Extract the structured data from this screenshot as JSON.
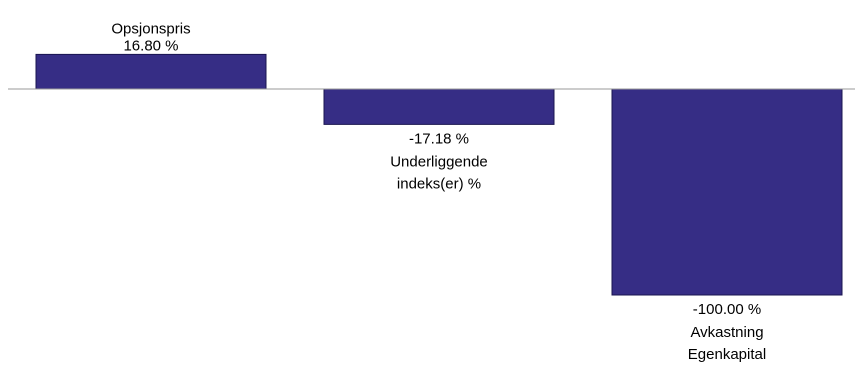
{
  "chart_data": {
    "type": "bar",
    "title": "",
    "xlabel": "",
    "ylabel": "",
    "categories": [
      "Opsjonspris",
      "Underliggende indeks(er) %",
      "Avkastning Egenkapital"
    ],
    "category_lines": [
      [
        "Opsjonspris"
      ],
      [
        "Underliggende",
        "indeks(er) %"
      ],
      [
        "Avkastning",
        "Egenkapital"
      ]
    ],
    "values": [
      16.8,
      -17.18,
      -100.0
    ],
    "value_labels": [
      "16.80 %",
      "-17.18 %",
      "-100.00 %"
    ],
    "ylim": [
      -100,
      16.8
    ],
    "grid": false,
    "legend": "none",
    "colors": {
      "bar": "#362D85",
      "bar_edge": "#1a1550",
      "baseline": "#999999"
    }
  }
}
